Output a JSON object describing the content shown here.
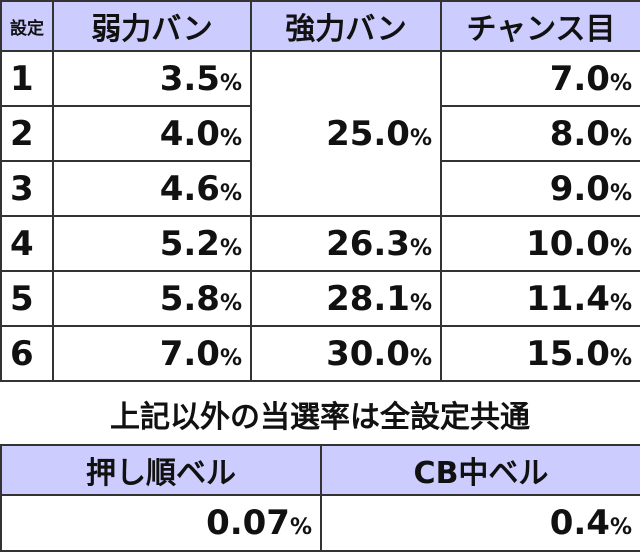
{
  "table1": {
    "header": [
      "設定",
      "弱力バン",
      "強力バン",
      "チャンス目"
    ],
    "rows": [
      [
        {
          "number": "1"
        },
        {
          "number": "3.5",
          "unit": "%"
        },
        {
          "number": "25.0",
          "unit": "%",
          "rowspan": 3
        },
        {
          "number": "7.0",
          "unit": "%"
        }
      ],
      [
        {
          "number": "2"
        },
        {
          "number": "4.0",
          "unit": "%"
        },
        null,
        {
          "number": "8.0",
          "unit": "%"
        }
      ],
      [
        {
          "number": "3"
        },
        {
          "number": "4.6",
          "unit": "%"
        },
        null,
        {
          "number": "9.0",
          "unit": "%"
        }
      ],
      [
        {
          "number": "4"
        },
        {
          "number": "5.2",
          "unit": "%"
        },
        {
          "number": "26.3",
          "unit": "%"
        },
        {
          "number": "10.0",
          "unit": "%"
        }
      ],
      [
        {
          "number": "5"
        },
        {
          "number": "5.8",
          "unit": "%"
        },
        {
          "number": "28.1",
          "unit": "%"
        },
        {
          "number": "11.4",
          "unit": "%"
        }
      ],
      [
        {
          "number": "6"
        },
        {
          "number": "7.0",
          "unit": "%"
        },
        {
          "number": "30.0",
          "unit": "%"
        },
        {
          "number": "15.0",
          "unit": "%"
        }
      ]
    ]
  },
  "note": "上記以外の当選率は全設定共通",
  "table2": {
    "header": [
      "押し順ベル",
      "CB中ベル"
    ],
    "rows": [
      [
        {
          "number": "0.07",
          "unit": "%"
        },
        {
          "number": "0.4",
          "unit": "%"
        }
      ]
    ]
  }
}
